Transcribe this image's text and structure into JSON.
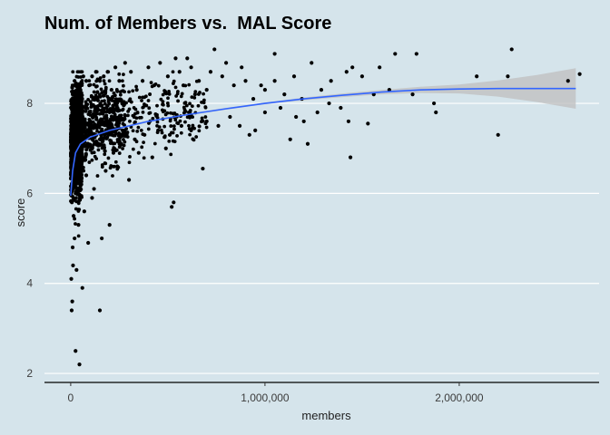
{
  "chart_data": {
    "type": "scatter",
    "title": "Num. of Members vs.  MAL Score",
    "xlabel": "members",
    "ylabel": "score",
    "xlim": [
      -135000,
      2720000
    ],
    "ylim": [
      1.8,
      9.35
    ],
    "x_ticks": [
      0,
      1000000,
      2000000
    ],
    "x_tick_labels": [
      "0",
      "1,000,000",
      "2,000,000"
    ],
    "y_ticks": [
      2,
      4,
      6,
      8
    ],
    "y_tick_labels": [
      "2",
      "4",
      "6",
      "8"
    ],
    "grid": "horizontal",
    "points": [
      [
        25000,
        2.5
      ],
      [
        45000,
        2.2
      ],
      [
        150000,
        3.4
      ],
      [
        5000,
        3.4
      ],
      [
        60000,
        3.9
      ],
      [
        8000,
        3.6
      ],
      [
        3000,
        4.1
      ],
      [
        12000,
        4.4
      ],
      [
        30000,
        4.3
      ],
      [
        90000,
        4.9
      ],
      [
        200000,
        5.3
      ],
      [
        160000,
        5.0
      ],
      [
        530000,
        5.8
      ],
      [
        520000,
        5.7
      ],
      [
        10000,
        4.8
      ],
      [
        20000,
        5.0
      ],
      [
        40000,
        5.3
      ],
      [
        70000,
        5.6
      ],
      [
        110000,
        5.9
      ],
      [
        15000,
        5.5
      ],
      [
        6000,
        5.8
      ],
      [
        25000,
        6.0
      ],
      [
        55000,
        6.2
      ],
      [
        80000,
        6.4
      ],
      [
        120000,
        6.1
      ],
      [
        180000,
        6.5
      ],
      [
        240000,
        6.6
      ],
      [
        300000,
        6.3
      ],
      [
        350000,
        6.9
      ],
      [
        420000,
        6.8
      ],
      [
        490000,
        7.0
      ],
      [
        680000,
        6.55
      ],
      [
        220000,
        6.9
      ],
      [
        260000,
        7.1
      ],
      [
        330000,
        7.2
      ],
      [
        380000,
        7.3
      ],
      [
        450000,
        7.4
      ],
      [
        510000,
        7.3
      ],
      [
        570000,
        7.5
      ],
      [
        620000,
        7.4
      ],
      [
        700000,
        7.6
      ],
      [
        760000,
        7.5
      ],
      [
        820000,
        7.7
      ],
      [
        870000,
        7.5
      ],
      [
        920000,
        7.3
      ],
      [
        950000,
        7.4
      ],
      [
        1000000,
        7.8
      ],
      [
        1080000,
        7.9
      ],
      [
        1130000,
        7.2
      ],
      [
        1160000,
        7.7
      ],
      [
        1200000,
        7.6
      ],
      [
        1220000,
        7.1
      ],
      [
        1270000,
        7.8
      ],
      [
        1330000,
        8.0
      ],
      [
        1390000,
        7.9
      ],
      [
        1430000,
        7.6
      ],
      [
        1440000,
        6.8
      ],
      [
        1530000,
        7.55
      ],
      [
        1560000,
        8.2
      ],
      [
        1640000,
        8.3
      ],
      [
        1760000,
        8.2
      ],
      [
        1870000,
        8.0
      ],
      [
        1880000,
        7.8
      ],
      [
        1000000,
        8.3
      ],
      [
        1050000,
        8.5
      ],
      [
        1100000,
        8.2
      ],
      [
        1150000,
        8.6
      ],
      [
        1190000,
        8.1
      ],
      [
        1240000,
        8.9
      ],
      [
        1290000,
        8.3
      ],
      [
        1340000,
        8.5
      ],
      [
        1420000,
        8.7
      ],
      [
        1450000,
        8.8
      ],
      [
        1500000,
        8.6
      ],
      [
        1590000,
        8.8
      ],
      [
        1670000,
        9.1
      ],
      [
        1780000,
        9.1
      ],
      [
        1050000,
        9.1
      ],
      [
        2090000,
        8.6
      ],
      [
        2200000,
        7.3
      ],
      [
        2250000,
        8.6
      ],
      [
        2270000,
        9.2
      ],
      [
        2560000,
        8.5
      ],
      [
        2620000,
        8.65
      ],
      [
        700000,
        8.3
      ],
      [
        720000,
        8.7
      ],
      [
        740000,
        9.2
      ],
      [
        780000,
        8.6
      ],
      [
        800000,
        8.9
      ],
      [
        840000,
        8.4
      ],
      [
        880000,
        8.8
      ],
      [
        900000,
        8.5
      ],
      [
        940000,
        8.1
      ],
      [
        980000,
        8.4
      ],
      [
        620000,
        8.8
      ],
      [
        640000,
        8.2
      ],
      [
        660000,
        8.5
      ],
      [
        600000,
        9.0
      ],
      [
        560000,
        8.7
      ],
      [
        580000,
        8.4
      ],
      [
        540000,
        9.0
      ],
      [
        500000,
        8.6
      ],
      [
        460000,
        8.9
      ],
      [
        430000,
        8.4
      ],
      [
        400000,
        8.8
      ],
      [
        370000,
        8.5
      ],
      [
        340000,
        8.3
      ],
      [
        310000,
        8.7
      ],
      [
        280000,
        8.9
      ],
      [
        250000,
        8.5
      ],
      [
        230000,
        8.8
      ],
      [
        210000,
        8.3
      ],
      [
        190000,
        8.7
      ],
      [
        170000,
        8.6
      ],
      [
        150000,
        8.5
      ],
      [
        130000,
        8.7
      ],
      [
        110000,
        8.6
      ],
      [
        95000,
        8.4
      ],
      [
        80000,
        8.5
      ],
      [
        65000,
        8.6
      ],
      [
        50000,
        8.3
      ],
      [
        35000,
        8.4
      ],
      [
        20000,
        8.5
      ],
      [
        10000,
        8.2
      ],
      [
        5000,
        8.0
      ]
    ],
    "trend": {
      "x": [
        0,
        10000,
        25000,
        50000,
        100000,
        200000,
        400000,
        600000,
        800000,
        1000000,
        1200000,
        1400000,
        1600000,
        1800000,
        2000000,
        2200000,
        2400000,
        2600000
      ],
      "y": [
        5.95,
        6.5,
        6.9,
        7.1,
        7.25,
        7.4,
        7.6,
        7.75,
        7.88,
        8.0,
        8.1,
        8.18,
        8.25,
        8.3,
        8.32,
        8.33,
        8.33,
        8.33
      ],
      "lower": [
        5.85,
        6.45,
        6.87,
        7.08,
        7.23,
        7.38,
        7.58,
        7.73,
        7.86,
        7.98,
        8.07,
        8.14,
        8.2,
        8.23,
        8.22,
        8.15,
        8.03,
        7.88
      ],
      "upper": [
        6.05,
        6.55,
        6.93,
        7.12,
        7.27,
        7.42,
        7.62,
        7.77,
        7.9,
        8.02,
        8.13,
        8.22,
        8.3,
        8.37,
        8.42,
        8.51,
        8.63,
        8.78
      ]
    },
    "colors": {
      "background": "#d5e4eb",
      "grid": "#ffffff",
      "points": "#000000",
      "trend": "#3366ff",
      "band": "#bfbfbf"
    }
  }
}
